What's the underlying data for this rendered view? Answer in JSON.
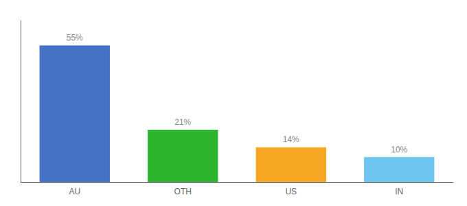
{
  "chart_data": {
    "type": "bar",
    "categories": [
      "AU",
      "OTH",
      "US",
      "IN"
    ],
    "values": [
      55,
      21,
      14,
      10
    ],
    "value_labels": [
      "55%",
      "21%",
      "14%",
      "10%"
    ],
    "colors": [
      "#4472c4",
      "#2db52d",
      "#f5a623",
      "#6ec6f0"
    ],
    "ylim": [
      0,
      65
    ],
    "data_labels": true,
    "tick_labels": "x",
    "grid": false
  }
}
